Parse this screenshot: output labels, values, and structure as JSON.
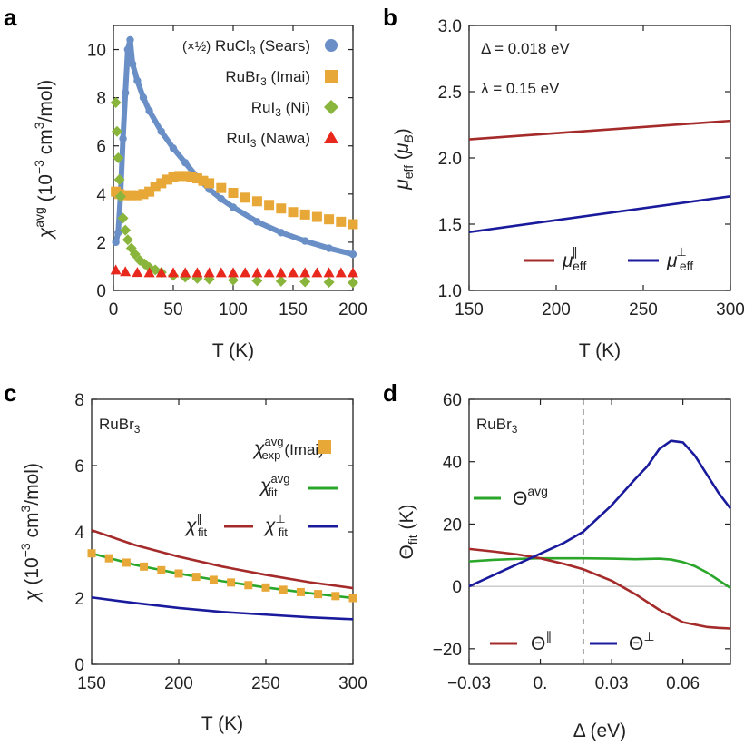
{
  "chart_data": [
    {
      "panel": "a",
      "type": "scatter",
      "xlabel": "T (K)",
      "ylabel": "χavg (10−3 cm3/mol)",
      "xlim": [
        0,
        200
      ],
      "ylim": [
        0,
        11
      ],
      "xticks": [
        "0",
        "50",
        "100",
        "150",
        "200"
      ],
      "yticks": [
        "0",
        "2",
        "4",
        "6",
        "8",
        "10"
      ],
      "series": [
        {
          "name": "(×½) RuCl3 (Sears)",
          "marker": "circle",
          "color": "#6a8fc7",
          "x": [
            2,
            4,
            6,
            8,
            10,
            12,
            14,
            16,
            20,
            25,
            30,
            40,
            50,
            60,
            70,
            80,
            90,
            100,
            120,
            140,
            160,
            180,
            200
          ],
          "y": [
            2.0,
            2.4,
            4.0,
            6.3,
            8.2,
            10.0,
            10.4,
            9.4,
            8.7,
            8.0,
            7.45,
            6.6,
            5.9,
            5.3,
            4.7,
            4.2,
            3.8,
            3.45,
            2.85,
            2.4,
            2.05,
            1.75,
            1.5
          ]
        },
        {
          "name": "RuBr3 (Imai)",
          "marker": "square",
          "color": "#e8a838",
          "x": [
            2,
            5,
            10,
            15,
            20,
            25,
            30,
            35,
            40,
            45,
            50,
            55,
            60,
            65,
            70,
            75,
            80,
            90,
            100,
            110,
            120,
            130,
            140,
            150,
            160,
            170,
            180,
            190,
            200
          ],
          "y": [
            4.1,
            4.0,
            3.95,
            3.95,
            3.95,
            4.0,
            4.1,
            4.3,
            4.45,
            4.6,
            4.7,
            4.75,
            4.75,
            4.7,
            4.65,
            4.55,
            4.45,
            4.25,
            4.05,
            3.85,
            3.7,
            3.55,
            3.4,
            3.25,
            3.15,
            3.05,
            2.95,
            2.85,
            2.75
          ]
        },
        {
          "name": "RuI3 (Ni)",
          "marker": "diamond",
          "color": "#8ab53d",
          "x": [
            2,
            3,
            4,
            5,
            6,
            8,
            10,
            12,
            15,
            18,
            22,
            26,
            30,
            35,
            40,
            50,
            60,
            70,
            80,
            100,
            120,
            140,
            160,
            180,
            200
          ],
          "y": [
            7.8,
            6.6,
            5.5,
            4.6,
            3.9,
            3.0,
            2.5,
            2.1,
            1.75,
            1.5,
            1.25,
            1.1,
            0.95,
            0.85,
            0.75,
            0.62,
            0.55,
            0.5,
            0.47,
            0.43,
            0.4,
            0.38,
            0.36,
            0.34,
            0.32
          ]
        },
        {
          "name": "RuI3 (Nawa)",
          "marker": "triangle",
          "color": "#e8281c",
          "x": [
            2,
            10,
            20,
            30,
            40,
            50,
            60,
            70,
            80,
            90,
            100,
            110,
            120,
            130,
            140,
            150,
            160,
            170,
            180,
            190,
            200
          ],
          "y": [
            0.85,
            0.78,
            0.75,
            0.74,
            0.74,
            0.74,
            0.74,
            0.74,
            0.74,
            0.74,
            0.74,
            0.74,
            0.74,
            0.74,
            0.74,
            0.74,
            0.74,
            0.74,
            0.74,
            0.74,
            0.74
          ]
        }
      ]
    },
    {
      "panel": "b",
      "type": "line",
      "xlabel": "T (K)",
      "ylabel": "μeff (μB)",
      "xlim": [
        150,
        300
      ],
      "ylim": [
        1.0,
        3.0
      ],
      "xticks": [
        "150",
        "200",
        "250",
        "300"
      ],
      "yticks": [
        "1.0",
        "1.5",
        "2.0",
        "2.5",
        "3.0"
      ],
      "annotations": [
        "Δ = 0.018 eV",
        "λ = 0.15 eV"
      ],
      "series": [
        {
          "name": "μeff∥",
          "color": "#a52a2a",
          "x": [
            150,
            300
          ],
          "y": [
            2.14,
            2.28
          ]
        },
        {
          "name": "μeff⊥",
          "color": "#1a1a9c",
          "x": [
            150,
            300
          ],
          "y": [
            1.44,
            1.71
          ]
        }
      ]
    },
    {
      "panel": "c",
      "type": "line",
      "xlabel": "T (K)",
      "ylabel": "χ (10−3 cm3/mol)",
      "xlim": [
        150,
        300
      ],
      "ylim": [
        0,
        8
      ],
      "xticks": [
        "150",
        "200",
        "250",
        "300"
      ],
      "yticks": [
        "0",
        "2",
        "4",
        "6",
        "8"
      ],
      "annotations": [
        "RuBr3"
      ],
      "series": [
        {
          "name": "χexp avg (Imai)",
          "marker": "square",
          "color": "#e8a838",
          "x": [
            150,
            160,
            170,
            180,
            190,
            200,
            210,
            220,
            230,
            240,
            250,
            260,
            270,
            280,
            290,
            300
          ],
          "y": [
            3.35,
            3.2,
            3.07,
            2.95,
            2.84,
            2.74,
            2.64,
            2.55,
            2.47,
            2.39,
            2.32,
            2.25,
            2.18,
            2.12,
            2.06,
            2.0
          ]
        },
        {
          "name": "χfit avg",
          "color": "#2aa72a",
          "x": [
            150,
            175,
            200,
            225,
            250,
            275,
            300
          ],
          "y": [
            3.35,
            3.0,
            2.74,
            2.51,
            2.32,
            2.15,
            2.0
          ]
        },
        {
          "name": "χfit∥",
          "color": "#a52a2a",
          "x": [
            150,
            175,
            200,
            225,
            250,
            275,
            300
          ],
          "y": [
            4.05,
            3.6,
            3.25,
            2.95,
            2.7,
            2.48,
            2.3
          ]
        },
        {
          "name": "χfit⊥",
          "color": "#1a1a9c",
          "x": [
            150,
            175,
            200,
            225,
            250,
            275,
            300
          ],
          "y": [
            2.02,
            1.85,
            1.7,
            1.58,
            1.5,
            1.42,
            1.36
          ]
        }
      ]
    },
    {
      "panel": "d",
      "type": "line",
      "xlabel": "Δ (eV)",
      "ylabel": "Θfit (K)",
      "xlim": [
        -0.03,
        0.08
      ],
      "ylim": [
        -25,
        60
      ],
      "xticks": [
        "−0.03",
        "0.",
        "0.03",
        "0.06"
      ],
      "yticks": [
        "−20",
        "0",
        "20",
        "40",
        "60"
      ],
      "annotations": [
        "RuBr3"
      ],
      "vline": 0.018,
      "series": [
        {
          "name": "Θavg",
          "color": "#2aa72a",
          "x": [
            -0.03,
            -0.02,
            -0.01,
            0.0,
            0.01,
            0.018,
            0.03,
            0.04,
            0.05,
            0.055,
            0.06,
            0.065,
            0.07,
            0.075,
            0.08
          ],
          "y": [
            8.0,
            8.5,
            8.8,
            9.0,
            9.0,
            9.0,
            8.9,
            8.7,
            8.9,
            8.6,
            7.8,
            6.5,
            4.5,
            2.0,
            -0.5
          ]
        },
        {
          "name": "Θ∥",
          "color": "#a52a2a",
          "x": [
            -0.03,
            -0.02,
            -0.01,
            0.0,
            0.01,
            0.018,
            0.03,
            0.04,
            0.05,
            0.06,
            0.07,
            0.075,
            0.08
          ],
          "y": [
            12.0,
            11.2,
            10.3,
            9.0,
            7.2,
            5.5,
            1.8,
            -2.5,
            -7.5,
            -11.5,
            -13.0,
            -13.3,
            -13.5
          ]
        },
        {
          "name": "Θ⊥",
          "color": "#1a1a9c",
          "x": [
            -0.03,
            -0.02,
            -0.01,
            0.0,
            0.01,
            0.018,
            0.03,
            0.04,
            0.045,
            0.05,
            0.055,
            0.06,
            0.065,
            0.07,
            0.075,
            0.08
          ],
          "y": [
            0.0,
            3.5,
            7.0,
            10.5,
            14.0,
            17.5,
            26.0,
            34.5,
            38.5,
            44.0,
            46.7,
            46.2,
            42.0,
            36.0,
            30.0,
            25.0
          ]
        }
      ]
    }
  ],
  "panels": {
    "a": {
      "letter": "a",
      "xlabel": "T (K)"
    },
    "b": {
      "letter": "b",
      "xlabel": "T (K)"
    },
    "c": {
      "letter": "c",
      "xlabel": "T (K)"
    },
    "d": {
      "letter": "d",
      "xlabel": "Δ (eV)"
    }
  },
  "legend_text": {
    "a_sears_half": "(×½)",
    "a_sears_ru": "RuCl",
    "a_sears_sub": "3",
    "a_sears_src": "(Sears)",
    "a_imai_ru": "RuBr",
    "a_imai_sub": "3",
    "a_imai_src": "(Imai)",
    "a_ni_ru": "RuI",
    "a_ni_sub": "3",
    "a_ni_src": "(Ni)",
    "a_nawa_ru": "RuI",
    "a_nawa_sub": "3",
    "a_nawa_src": "(Nawa)",
    "b_delta": "Δ = 0.018 eV",
    "b_lambda": "λ = 0.15 eV",
    "b_mu": "μ",
    "b_par_sup": "∥",
    "b_perp_sup": "⊥",
    "b_sub": "eff",
    "c_compound": "RuBr",
    "c_compound_sub": "3",
    "c_chi": "χ",
    "c_avg": "avg",
    "c_exp": "exp",
    "c_fit": "fit",
    "c_imai": "(Imai)",
    "c_par": "∥",
    "c_perp": "⊥",
    "d_compound": "RuBr",
    "d_compound_sub": "3",
    "d_theta": "Θ",
    "d_avg": "avg",
    "d_par": "∥",
    "d_perp": "⊥"
  },
  "axis_text": {
    "a_y_chi": "χ",
    "a_y_sup": "avg",
    "a_y_rest1": " (10",
    "a_y_exp": "−3",
    "a_y_rest2": " cm",
    "a_y_cm": "3",
    "a_y_rest3": "/mol)",
    "b_y_mu": "μ",
    "b_y_sub": "eff",
    "b_y_rest": " (",
    "b_y_muB": "μ",
    "b_y_B": "B",
    "b_y_close": ")",
    "c_y_chi": "χ",
    "c_y_rest1": " (10",
    "c_y_exp": "−3",
    "c_y_rest2": " cm",
    "c_y_cm": "3",
    "c_y_rest3": "/mol)",
    "d_y_theta": "Θ",
    "d_y_sub": "fit",
    "d_y_rest": " (K)"
  }
}
